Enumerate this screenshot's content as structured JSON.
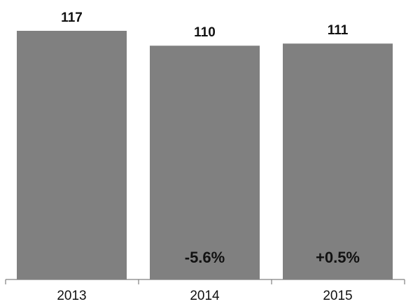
{
  "chart_data": {
    "type": "bar",
    "categories": [
      "2013",
      "2014",
      "2015"
    ],
    "values": [
      117,
      110,
      111
    ],
    "value_labels": [
      "117",
      "110",
      "111"
    ],
    "change_labels": [
      "",
      "-5.6%",
      "+0.5%"
    ],
    "title": "",
    "xlabel": "",
    "ylabel": "",
    "ylim": [
      0,
      117
    ],
    "grid": false,
    "legend": "none",
    "colors": {
      "bar": "#808080",
      "axis": "#808080",
      "text": "#111111"
    }
  }
}
